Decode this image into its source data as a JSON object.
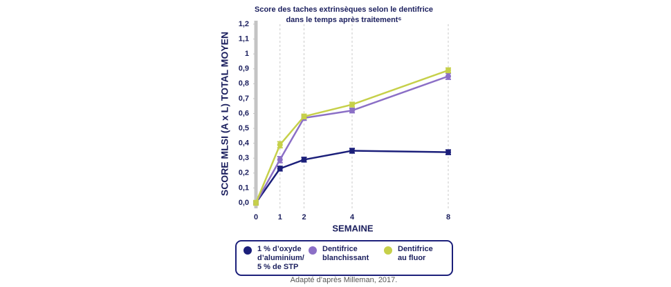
{
  "chart_data": {
    "type": "line",
    "title_lines": [
      "Score des taches extrinsèques selon le dentifrice",
      "dans le temps après traitement⁶"
    ],
    "y_label": "SCORE MLSI (A x L) TOTAL MOYEN",
    "x_label": "SEMAINE",
    "x": [
      0,
      1,
      2,
      4,
      8
    ],
    "xlim": [
      0,
      8
    ],
    "xticks": [
      0,
      1,
      2,
      4,
      8
    ],
    "ylim": [
      0,
      1.2
    ],
    "yticks": [
      {
        "value": 0,
        "label": "0,0"
      },
      {
        "value": 0.1,
        "label": "0,1"
      },
      {
        "value": 0.2,
        "label": "0,2"
      },
      {
        "value": 0.3,
        "label": "0,3"
      },
      {
        "value": 0.4,
        "label": "0,4"
      },
      {
        "value": 0.5,
        "label": "0,5"
      },
      {
        "value": 0.6,
        "label": "0,6"
      },
      {
        "value": 0.7,
        "label": "0,7"
      },
      {
        "value": 0.8,
        "label": "0,8"
      },
      {
        "value": 0.9,
        "label": "0,9"
      },
      1,
      {
        "value": 1.1,
        "label": "1,1"
      },
      {
        "value": 1.2,
        "label": "1,2"
      }
    ],
    "grid": true,
    "series": [
      {
        "name": "1 % d’oxyde\nd’aluminium/\n5 % de STP",
        "color": "#1b1f7a",
        "values": [
          0,
          0.23,
          0.29,
          0.35,
          0.34
        ],
        "errors": [
          0.01,
          0.015,
          0.015,
          0.015,
          0.015
        ]
      },
      {
        "name": "Dentifrice\nblanchissant",
        "color": "#8b6fc6",
        "values": [
          0,
          0.29,
          0.57,
          0.62,
          0.85
        ],
        "errors": [
          0.01,
          0.02,
          0.015,
          0.015,
          0.02
        ]
      },
      {
        "name": "Dentifrice\nau fluor",
        "color": "#c6d04a",
        "values": [
          0,
          0.39,
          0.58,
          0.66,
          0.89
        ],
        "errors": [
          0.015,
          0.02,
          0.015,
          0.015,
          0.015
        ]
      }
    ],
    "footnote": "Adapté d’après Milleman, 2017."
  }
}
